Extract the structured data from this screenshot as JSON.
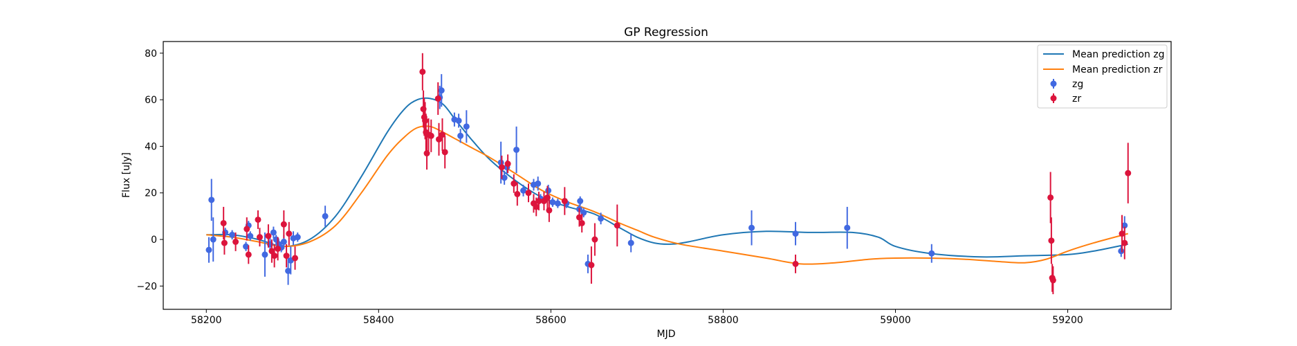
{
  "chart_data": {
    "type": "scatter",
    "title": "GP Regression",
    "xlabel": "MJD",
    "ylabel": "Flux [uJy]",
    "xlim": [
      58150,
      59320
    ],
    "ylim": [
      -30,
      85
    ],
    "xticks": [
      58200,
      58400,
      58600,
      58800,
      59000,
      59200
    ],
    "yticks": [
      -20,
      0,
      20,
      40,
      60,
      80
    ],
    "grid": false,
    "legend_placement": "top-right",
    "lines": [
      {
        "name": "Mean prediction zg",
        "color": "#1f77b4",
        "x": [
          58200,
          58230,
          58260,
          58290,
          58320,
          58350,
          58380,
          58410,
          58430,
          58445,
          58460,
          58475,
          58490,
          58510,
          58530,
          58560,
          58590,
          58620,
          58650,
          58680,
          58700,
          58720,
          58740,
          58760,
          58800,
          58850,
          58900,
          58950,
          58980,
          59000,
          59040,
          59100,
          59150,
          59200,
          59230,
          59270
        ],
        "y": [
          2,
          2,
          0,
          -3,
          0,
          10,
          27,
          46,
          56,
          60,
          60.5,
          58,
          51,
          42,
          34,
          25,
          18,
          14,
          11,
          5,
          1,
          -1.5,
          -2,
          -1,
          2,
          3.5,
          3,
          3,
          1,
          -3,
          -6,
          -7.5,
          -7,
          -6.5,
          -5,
          -2
        ]
      },
      {
        "name": "Mean prediction zr",
        "color": "#ff7f0e",
        "x": [
          58200,
          58230,
          58260,
          58290,
          58320,
          58350,
          58380,
          58410,
          58430,
          58445,
          58460,
          58475,
          58490,
          58510,
          58530,
          58560,
          58590,
          58620,
          58650,
          58680,
          58700,
          58720,
          58750,
          58800,
          58850,
          58890,
          58930,
          58970,
          59000,
          59040,
          59080,
          59120,
          59150,
          59175,
          59200,
          59230,
          59270
        ],
        "y": [
          2,
          1,
          -1,
          -3,
          -1,
          6,
          20,
          36,
          44,
          48,
          48.5,
          46,
          43,
          39,
          35,
          28,
          21,
          16,
          12,
          7,
          4,
          1,
          -2,
          -5,
          -8,
          -10.5,
          -10,
          -8.5,
          -8,
          -8,
          -8.5,
          -9.5,
          -10,
          -8.5,
          -5,
          -1.5,
          2.5
        ]
      }
    ],
    "series": [
      {
        "name": "zg",
        "color": "#4169e1",
        "points": [
          [
            58203,
            -4.5,
            5.5
          ],
          [
            58206,
            17,
            9
          ],
          [
            58208,
            0,
            9.5
          ],
          [
            58222,
            3,
            2
          ],
          [
            58230,
            2,
            2
          ],
          [
            58246,
            -3,
            2
          ],
          [
            58249,
            6,
            2
          ],
          [
            58251,
            1.5,
            2
          ],
          [
            58268,
            -6.5,
            9.5
          ],
          [
            58274,
            -2,
            3
          ],
          [
            58278,
            3,
            2.5
          ],
          [
            58281,
            0,
            2
          ],
          [
            58284,
            -2,
            2
          ],
          [
            58287,
            -3.5,
            2
          ],
          [
            58290,
            -1,
            3
          ],
          [
            58295,
            -13.5,
            6
          ],
          [
            58298,
            -9,
            6
          ],
          [
            58301,
            0.5,
            3
          ],
          [
            58306,
            1,
            2
          ],
          [
            58338,
            10,
            4.5
          ],
          [
            58471,
            61,
            5
          ],
          [
            58473,
            64,
            7
          ],
          [
            58488,
            51.5,
            3
          ],
          [
            58493,
            51,
            3
          ],
          [
            58495,
            44.5,
            3
          ],
          [
            58502,
            48.5,
            7
          ],
          [
            58542,
            33,
            9
          ],
          [
            58546,
            26.5,
            3
          ],
          [
            58549,
            31,
            3
          ],
          [
            58560,
            38.5,
            10
          ],
          [
            58568,
            21,
            2.5
          ],
          [
            58580,
            23.5,
            2.5
          ],
          [
            58585,
            24,
            3
          ],
          [
            58588,
            17.5,
            2
          ],
          [
            58597,
            21,
            2.5
          ],
          [
            58602,
            16,
            2
          ],
          [
            58608,
            15.5,
            2
          ],
          [
            58618,
            15.5,
            2
          ],
          [
            58633,
            13,
            2
          ],
          [
            58634,
            16.5,
            2
          ],
          [
            58638,
            11.5,
            2
          ],
          [
            58643,
            -10.5,
            4
          ],
          [
            58658,
            9,
            2.5
          ],
          [
            58693,
            -1.5,
            4
          ],
          [
            58833,
            5,
            7.5
          ],
          [
            58884,
            2.5,
            5
          ],
          [
            58944,
            5,
            9
          ],
          [
            59042,
            -6,
            4
          ],
          [
            59262,
            -5,
            2.5
          ],
          [
            59266,
            6,
            4
          ]
        ]
      },
      {
        "name": "zr",
        "color": "#dc143c",
        "points": [
          [
            58220,
            7,
            7
          ],
          [
            58221,
            -1.5,
            5
          ],
          [
            58234,
            -1,
            4
          ],
          [
            58247,
            4.5,
            5
          ],
          [
            58249,
            -6.5,
            4
          ],
          [
            58260,
            8.5,
            4
          ],
          [
            58262,
            1,
            4
          ],
          [
            58272,
            1.5,
            5
          ],
          [
            58276,
            -5,
            5
          ],
          [
            58279,
            -7,
            5
          ],
          [
            58283,
            -4,
            5
          ],
          [
            58290,
            6.5,
            6
          ],
          [
            58293,
            -7,
            5
          ],
          [
            58296,
            2.5,
            5
          ],
          [
            58303,
            -8,
            5
          ],
          [
            58451,
            72,
            8
          ],
          [
            58452,
            56,
            8
          ],
          [
            58453,
            52.5,
            8
          ],
          [
            58454,
            51,
            8
          ],
          [
            58455,
            46,
            8
          ],
          [
            58456,
            37,
            7
          ],
          [
            58458,
            45,
            7
          ],
          [
            58461,
            44.5,
            7
          ],
          [
            58469,
            60.5,
            7
          ],
          [
            58470,
            43,
            7
          ],
          [
            58474,
            45,
            7
          ],
          [
            58477,
            37.5,
            7
          ],
          [
            58543,
            31,
            5
          ],
          [
            58550,
            32.5,
            4
          ],
          [
            58557,
            24,
            4
          ],
          [
            58561,
            19.5,
            5
          ],
          [
            58574,
            20,
            4
          ],
          [
            58580,
            15.5,
            4
          ],
          [
            58583,
            14,
            4
          ],
          [
            58586,
            16.5,
            4
          ],
          [
            58592,
            16.5,
            4
          ],
          [
            58596,
            18,
            5
          ],
          [
            58598,
            12.5,
            5
          ],
          [
            58616,
            16.5,
            6
          ],
          [
            58633,
            9.5,
            4
          ],
          [
            58636,
            7,
            4
          ],
          [
            58647,
            -11,
            8
          ],
          [
            58651,
            0,
            7
          ],
          [
            58677,
            6,
            9
          ],
          [
            58884,
            -10.5,
            4
          ],
          [
            59180,
            18,
            11
          ],
          [
            59181,
            -0.5,
            10
          ],
          [
            59182,
            -16.5,
            6
          ],
          [
            59183,
            -17.5,
            6
          ],
          [
            59263,
            2.5,
            8
          ],
          [
            59266,
            -1.5,
            7
          ],
          [
            59270,
            28.5,
            13
          ]
        ]
      }
    ]
  }
}
